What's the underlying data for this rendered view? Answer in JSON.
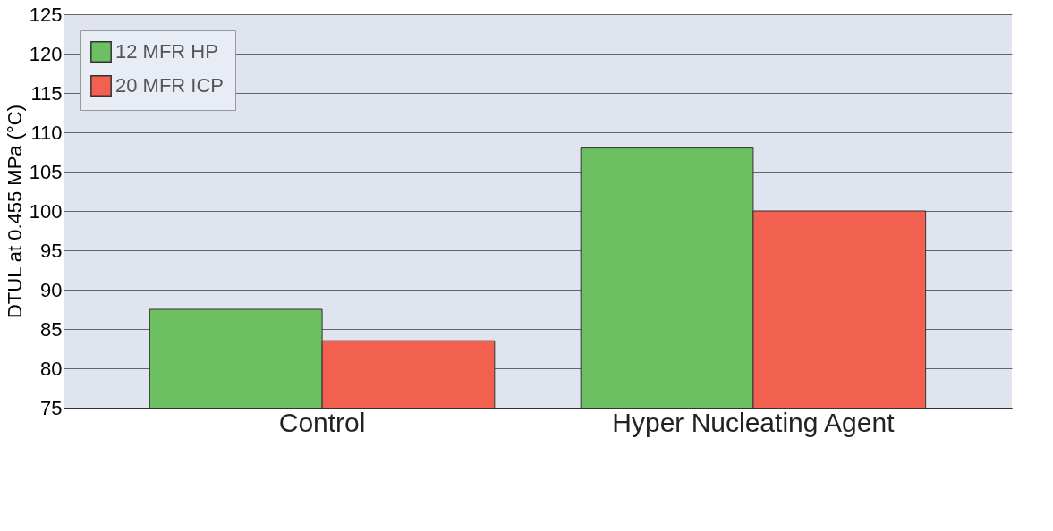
{
  "chart_data": {
    "type": "bar",
    "ylabel": "DTUL at 0.455 MPa (°C)",
    "categories": [
      "Control",
      "Hyper Nucleating Agent"
    ],
    "series": [
      {
        "name": "12 MFR HP",
        "color": "#6cc062",
        "values": [
          87.5,
          108
        ]
      },
      {
        "name": "20 MFR ICP",
        "color": "#f2604f",
        "values": [
          83.5,
          100
        ]
      }
    ],
    "ylim": [
      75,
      125
    ],
    "yticks": [
      75,
      80,
      85,
      90,
      95,
      100,
      105,
      110,
      115,
      120,
      125
    ],
    "grid": "y",
    "legend": "top left"
  }
}
